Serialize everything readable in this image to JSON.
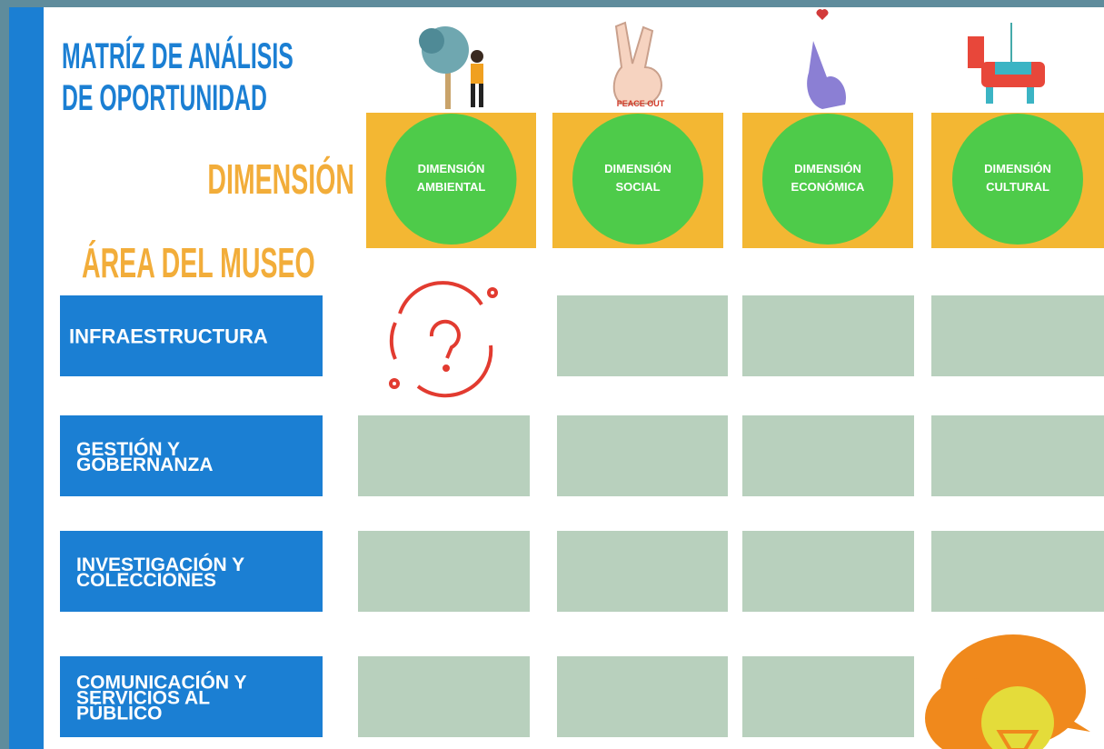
{
  "title": [
    "MATRÍZ DE ANÁLISIS",
    "DE OPORTUNIDAD"
  ],
  "dimension_heading": "DIMENSIÓN",
  "area_heading": "ÁREA DEL MUSEO",
  "dimensions": [
    [
      "DIMENSIÓN",
      "AMBIENTAL"
    ],
    [
      "DIMENSIÓN",
      "SOCIAL"
    ],
    [
      "DIMENSIÓN",
      "ECONÓMICA"
    ],
    [
      "DIMENSIÓN",
      "CULTURAL"
    ]
  ],
  "areas": [
    [
      "INFRAESTRUCTURA"
    ],
    [
      "GESTIÓN Y",
      "GOBERNANZA"
    ],
    [
      "INVESTIGACIÓN Y",
      "COLECCIONES"
    ],
    [
      "COMUNICACIÓN Y",
      "SERVICIOS AL",
      "PÚBLICO"
    ]
  ],
  "icon_text": "PEACE OUT"
}
